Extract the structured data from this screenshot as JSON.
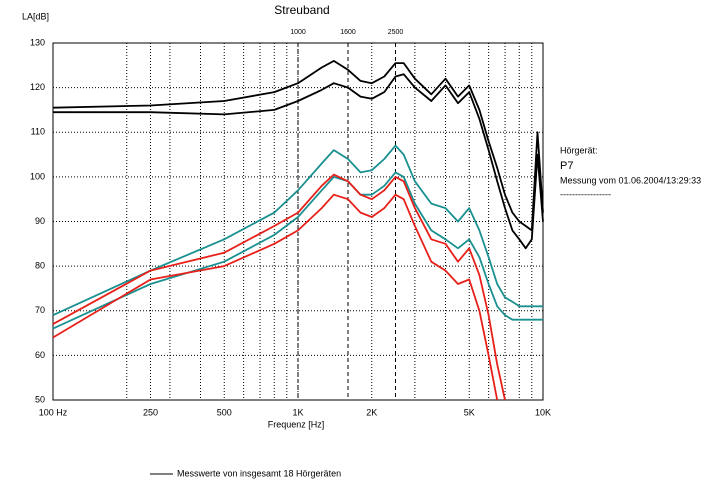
{
  "chart_data": {
    "type": "line",
    "title": "Streuband",
    "y_label": "LA[dB]",
    "x_label": "Frequenz [Hz]",
    "log_x": true,
    "grid": true,
    "xlim": [
      100,
      10000
    ],
    "ylim": [
      50,
      130
    ],
    "yticks": [
      50,
      60,
      70,
      80,
      90,
      100,
      110,
      120,
      130
    ],
    "xticks": [
      {
        "value": 100,
        "label": "100 Hz"
      },
      250,
      500,
      {
        "value": 1000,
        "label": "1K"
      },
      {
        "value": 2000,
        "label": "2K"
      },
      {
        "value": 5000,
        "label": "5K"
      },
      {
        "value": 10000,
        "label": "10K"
      }
    ],
    "x_minor_ticks": [
      200,
      300,
      400,
      600,
      700,
      800,
      900,
      3000,
      4000,
      6000,
      7000,
      8000,
      9000
    ],
    "top_markers": [
      1000,
      1600,
      2500
    ],
    "x": [
      100,
      250,
      500,
      800,
      1000,
      1250,
      1400,
      1600,
      1800,
      2000,
      2250,
      2500,
      2700,
      3000,
      3500,
      4000,
      4500,
      5000,
      5500,
      6000,
      6500,
      7000,
      7500,
      8000,
      8500,
      9000,
      9500,
      10000
    ],
    "series": [
      {
        "color": "#000000",
        "values": [
          115.5,
          116,
          117,
          119,
          121,
          124.5,
          126,
          124,
          121.5,
          121,
          122.5,
          125.5,
          125.5,
          122,
          118.5,
          122,
          118,
          120.5,
          115,
          108,
          102,
          96,
          92,
          90,
          89,
          88,
          110,
          92
        ]
      },
      {
        "color": "#000000",
        "values": [
          114.5,
          114.5,
          114,
          115,
          117,
          119.5,
          121,
          120,
          118,
          117.5,
          119,
          122.5,
          123,
          120,
          117,
          120.5,
          116.5,
          119,
          113,
          106,
          99,
          93,
          88,
          86,
          84,
          86,
          105,
          90
        ]
      },
      {
        "color": "#1a9090",
        "values": [
          69,
          79,
          86,
          92,
          97,
          103,
          106,
          104,
          101,
          101.5,
          104,
          107,
          105,
          99,
          94,
          93,
          90,
          93,
          88,
          82,
          76,
          73,
          72,
          71,
          71,
          71,
          71,
          71
        ]
      },
      {
        "color": "#1a9090",
        "values": [
          66,
          76,
          81,
          87,
          91,
          97,
          100,
          99,
          96,
          96,
          98,
          101,
          100,
          94,
          88,
          86,
          84,
          86,
          82,
          76,
          71,
          69,
          68,
          68,
          68,
          68,
          68,
          68
        ]
      },
      {
        "color": "#e8201a",
        "values": [
          67,
          79,
          83,
          89,
          92,
          98,
          100.5,
          99,
          96,
          95,
          97,
          100,
          99,
          93,
          86,
          85,
          81,
          84,
          78,
          69,
          58,
          50,
          null,
          null,
          null,
          null,
          null,
          null
        ]
      },
      {
        "color": "#e8201a",
        "values": [
          64,
          77,
          80,
          85,
          88,
          93,
          96,
          95,
          92,
          91,
          93,
          96,
          95,
          89,
          81,
          79,
          76,
          77,
          70,
          60,
          50,
          null,
          null,
          null,
          null,
          null,
          null,
          null
        ]
      }
    ],
    "legend": {
      "label": "Messwerte von insgesamt 18 Hörgeräten",
      "color": "#000000"
    },
    "info": [
      "Hörgerät:",
      "P7",
      "Messung vom 01.06.2004/13:29:33",
      "-----------------"
    ]
  }
}
